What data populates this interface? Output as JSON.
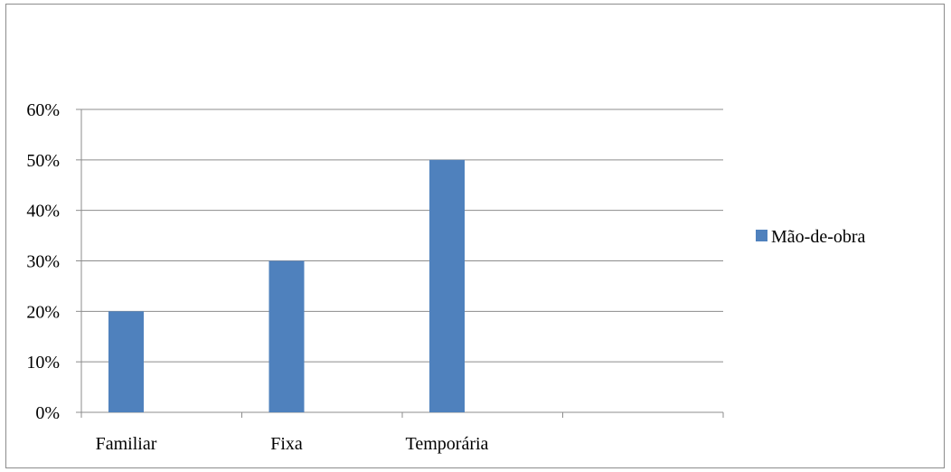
{
  "chart_data": {
    "type": "bar",
    "categories": [
      "Familiar",
      "Fixa",
      "Temporária",
      ""
    ],
    "series": [
      {
        "name": "Mão-de-obra",
        "values": [
          0.2,
          0.3,
          0.5,
          null
        ],
        "color": "#4f81bd"
      }
    ],
    "y_ticks": [
      "0%",
      "10%",
      "20%",
      "30%",
      "40%",
      "50%",
      "60%"
    ],
    "ylim": [
      0,
      0.6
    ],
    "grid": true,
    "legend_position": "right"
  }
}
